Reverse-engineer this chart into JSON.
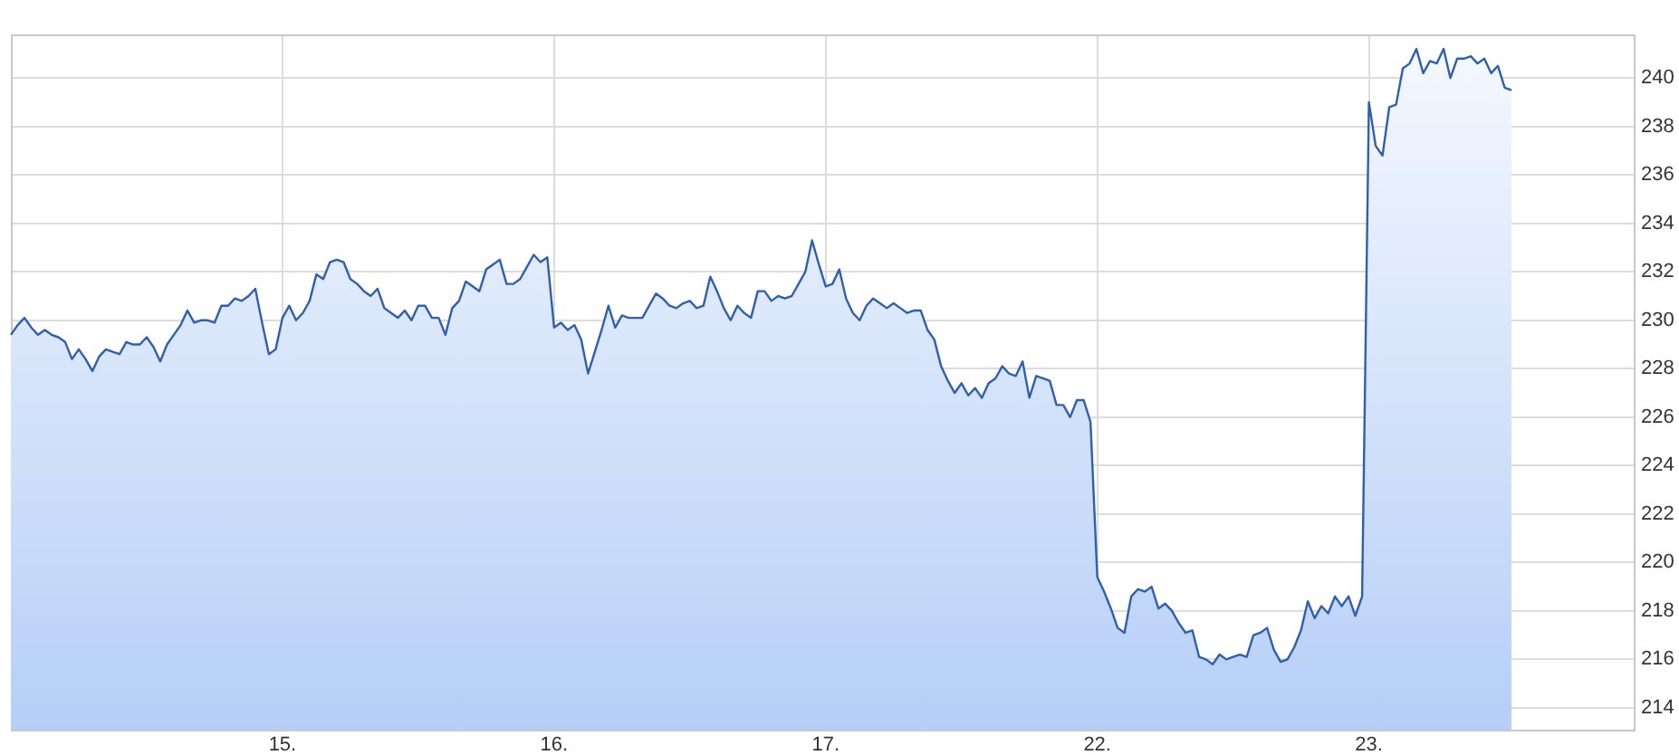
{
  "chart_data": {
    "type": "area",
    "color": "#2f5fae",
    "marker": "none",
    "line_style": "solid",
    "grid": true,
    "ylim": [
      213.1,
      241.8
    ],
    "yticks": [
      214,
      216,
      218,
      220,
      222,
      224,
      226,
      228,
      230,
      232,
      234,
      236,
      238,
      240
    ],
    "categories": [
      null,
      null,
      null,
      null,
      null,
      null,
      null,
      null,
      null,
      null,
      null,
      null,
      null,
      null,
      null,
      null,
      null,
      null,
      null,
      null,
      null,
      null,
      null,
      null,
      null,
      null,
      null,
      null,
      null,
      null,
      null,
      null,
      null,
      null,
      null,
      null,
      null,
      null,
      null,
      null,
      "15.",
      null,
      null,
      null,
      null,
      null,
      null,
      null,
      null,
      null,
      null,
      null,
      null,
      null,
      null,
      null,
      null,
      null,
      null,
      null,
      null,
      null,
      null,
      null,
      null,
      null,
      null,
      null,
      null,
      null,
      null,
      null,
      null,
      null,
      null,
      null,
      null,
      null,
      null,
      null,
      "16.",
      null,
      null,
      null,
      null,
      null,
      null,
      null,
      null,
      null,
      null,
      null,
      null,
      null,
      null,
      null,
      null,
      null,
      null,
      null,
      null,
      null,
      null,
      null,
      null,
      null,
      null,
      null,
      null,
      null,
      null,
      null,
      null,
      null,
      null,
      null,
      null,
      null,
      null,
      null,
      "17.",
      null,
      null,
      null,
      null,
      null,
      null,
      null,
      null,
      null,
      null,
      null,
      null,
      null,
      null,
      null,
      null,
      null,
      null,
      null,
      null,
      null,
      null,
      null,
      null,
      null,
      null,
      null,
      null,
      null,
      null,
      null,
      null,
      null,
      null,
      null,
      null,
      null,
      null,
      null,
      "22.",
      null,
      null,
      null,
      null,
      null,
      null,
      null,
      null,
      null,
      null,
      null,
      null,
      null,
      null,
      null,
      null,
      null,
      null,
      null,
      null,
      null,
      null,
      null,
      null,
      null,
      null,
      null,
      null,
      null,
      null,
      null,
      null,
      null,
      null,
      null,
      null,
      null,
      null,
      null,
      "23.",
      null,
      null,
      null,
      null,
      null,
      null,
      null,
      null,
      null,
      null,
      null,
      null,
      null,
      null,
      null,
      null,
      null,
      null,
      null,
      null,
      null,
      null,
      null,
      null,
      null,
      null,
      null,
      null,
      null,
      null,
      null,
      null,
      null,
      null,
      null,
      null,
      null,
      null,
      null
    ],
    "values": [
      229.4,
      229.8,
      230.1,
      229.7,
      229.4,
      229.6,
      229.4,
      229.3,
      229.1,
      228.4,
      228.8,
      228.4,
      227.9,
      228.5,
      228.8,
      228.7,
      228.6,
      229.1,
      229.0,
      229.0,
      229.3,
      228.9,
      228.3,
      229.0,
      229.4,
      229.8,
      230.4,
      229.9,
      230.0,
      230.0,
      229.9,
      230.6,
      230.6,
      230.9,
      230.8,
      231.0,
      231.3,
      229.9,
      228.6,
      228.8,
      230.1,
      230.6,
      230.0,
      230.3,
      230.8,
      231.9,
      231.7,
      232.4,
      232.5,
      232.4,
      231.7,
      231.5,
      231.2,
      231.0,
      231.3,
      230.5,
      230.3,
      230.1,
      230.4,
      230.0,
      230.6,
      230.6,
      230.1,
      230.1,
      229.4,
      230.5,
      230.8,
      231.6,
      231.4,
      231.2,
      232.1,
      232.3,
      232.5,
      231.5,
      231.5,
      231.7,
      232.2,
      232.7,
      232.4,
      232.6,
      229.7,
      229.9,
      229.6,
      229.8,
      229.2,
      227.8,
      228.7,
      229.6,
      230.6,
      229.7,
      230.2,
      230.1,
      230.1,
      230.1,
      230.6,
      231.1,
      230.9,
      230.6,
      230.5,
      230.7,
      230.8,
      230.5,
      230.6,
      231.8,
      231.2,
      230.5,
      230.0,
      230.6,
      230.3,
      230.1,
      231.2,
      231.2,
      230.8,
      231.0,
      230.9,
      231.0,
      231.5,
      232.0,
      233.3,
      232.3,
      231.4,
      231.5,
      232.1,
      230.9,
      230.3,
      230.0,
      230.6,
      230.9,
      230.7,
      230.5,
      230.7,
      230.5,
      230.3,
      230.4,
      230.4,
      229.6,
      229.2,
      228.1,
      227.5,
      227.0,
      227.4,
      226.9,
      227.2,
      226.8,
      227.4,
      227.6,
      228.1,
      227.8,
      227.7,
      228.3,
      226.8,
      227.7,
      227.6,
      227.5,
      226.5,
      226.5,
      226.0,
      226.7,
      226.7,
      225.8,
      219.4,
      218.8,
      218.1,
      217.3,
      217.1,
      218.6,
      218.9,
      218.8,
      219.0,
      218.1,
      218.3,
      218.0,
      217.5,
      217.1,
      217.2,
      216.1,
      216.0,
      215.8,
      216.2,
      216.0,
      216.1,
      216.2,
      216.1,
      217.0,
      217.1,
      217.3,
      216.4,
      215.9,
      216.0,
      216.5,
      217.2,
      218.4,
      217.7,
      218.2,
      217.9,
      218.6,
      218.2,
      218.6,
      217.8,
      218.6,
      239.0,
      237.2,
      236.8,
      238.8,
      238.9,
      240.4,
      240.6,
      241.2,
      240.2,
      240.7,
      240.6,
      241.2,
      240.0,
      240.8,
      240.8,
      240.9,
      240.6,
      240.8,
      240.2,
      240.5,
      239.6,
      239.5,
      null,
      null,
      null,
      null,
      null,
      null,
      null,
      null,
      null,
      null,
      null,
      null,
      null,
      null,
      null,
      null,
      null,
      null
    ]
  }
}
